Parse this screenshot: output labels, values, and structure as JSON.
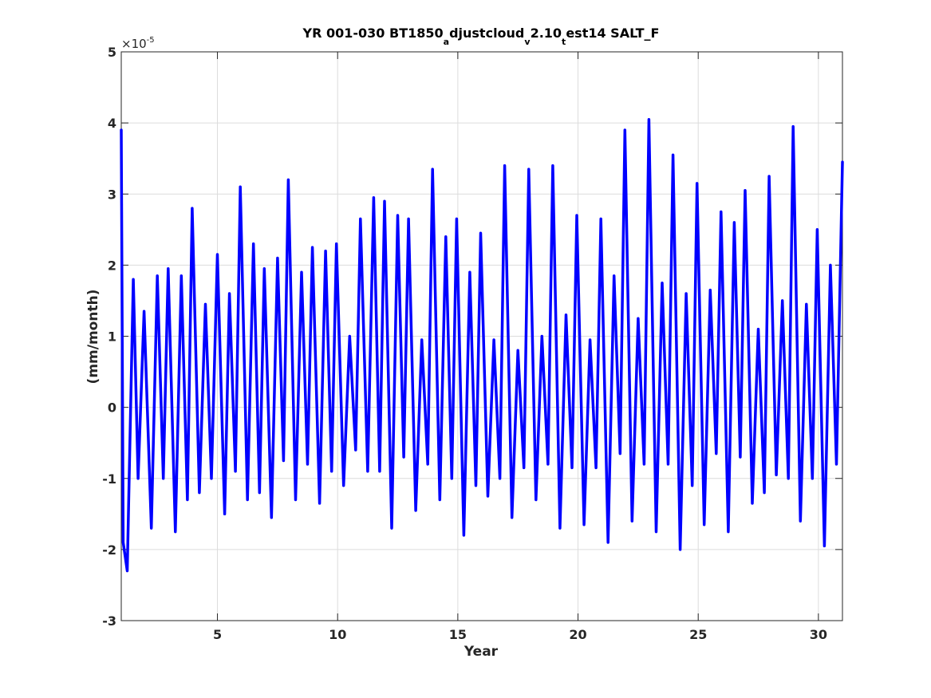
{
  "chart_data": {
    "type": "line",
    "title": {
      "main": "YR 001-030 BT1850",
      "sub1": "a",
      "part2": "djustcloud",
      "sub2": "v",
      "part3": "2.10",
      "sub3": "t",
      "part4": "est14 SALT_F"
    },
    "xlabel": "Year",
    "ylabel": "(mm/month)",
    "exponent_base": "×10",
    "exponent_power": "-5",
    "xlim": [
      1,
      31
    ],
    "ylim": [
      -3,
      5
    ],
    "xticks": [
      5,
      10,
      15,
      20,
      25,
      30
    ],
    "xtick_labels": [
      "5",
      "10",
      "15",
      "20",
      "25",
      "30"
    ],
    "yticks": [
      -3,
      -2,
      -1,
      0,
      1,
      2,
      3,
      4,
      5
    ],
    "ytick_labels": [
      "-3",
      "-2",
      "-1",
      "0",
      "1",
      "2",
      "3",
      "4",
      "5"
    ],
    "grid": true,
    "series": [
      {
        "color": "#0000ff",
        "points": [
          [
            1.0,
            3.9
          ],
          [
            1.08,
            -1.9
          ],
          [
            1.25,
            -2.3
          ],
          [
            1.5,
            1.8
          ],
          [
            1.7,
            -1.0
          ],
          [
            1.95,
            1.35
          ],
          [
            2.25,
            -1.7
          ],
          [
            2.5,
            1.85
          ],
          [
            2.75,
            -1.0
          ],
          [
            2.95,
            1.95
          ],
          [
            3.25,
            -1.75
          ],
          [
            3.5,
            1.85
          ],
          [
            3.75,
            -1.3
          ],
          [
            3.95,
            2.8
          ],
          [
            4.25,
            -1.2
          ],
          [
            4.5,
            1.45
          ],
          [
            4.75,
            -1.0
          ],
          [
            5.0,
            2.15
          ],
          [
            5.3,
            -1.5
          ],
          [
            5.5,
            1.6
          ],
          [
            5.75,
            -0.9
          ],
          [
            5.95,
            3.1
          ],
          [
            6.25,
            -1.3
          ],
          [
            6.5,
            2.3
          ],
          [
            6.75,
            -1.2
          ],
          [
            6.95,
            1.95
          ],
          [
            7.25,
            -1.55
          ],
          [
            7.5,
            2.1
          ],
          [
            7.75,
            -0.75
          ],
          [
            7.95,
            3.2
          ],
          [
            8.25,
            -1.3
          ],
          [
            8.5,
            1.9
          ],
          [
            8.75,
            -0.8
          ],
          [
            8.95,
            2.25
          ],
          [
            9.25,
            -1.35
          ],
          [
            9.5,
            2.2
          ],
          [
            9.75,
            -0.9
          ],
          [
            9.95,
            2.3
          ],
          [
            10.25,
            -1.1
          ],
          [
            10.5,
            1.0
          ],
          [
            10.75,
            -0.6
          ],
          [
            10.95,
            2.65
          ],
          [
            11.25,
            -0.9
          ],
          [
            11.5,
            2.95
          ],
          [
            11.75,
            -0.9
          ],
          [
            11.95,
            2.9
          ],
          [
            12.25,
            -1.7
          ],
          [
            12.5,
            2.7
          ],
          [
            12.75,
            -0.7
          ],
          [
            12.95,
            2.65
          ],
          [
            13.25,
            -1.45
          ],
          [
            13.5,
            0.95
          ],
          [
            13.75,
            -0.8
          ],
          [
            13.95,
            3.35
          ],
          [
            14.25,
            -1.3
          ],
          [
            14.5,
            2.4
          ],
          [
            14.75,
            -1.0
          ],
          [
            14.95,
            2.65
          ],
          [
            15.25,
            -1.8
          ],
          [
            15.5,
            1.9
          ],
          [
            15.75,
            -1.1
          ],
          [
            15.95,
            2.45
          ],
          [
            16.25,
            -1.25
          ],
          [
            16.5,
            0.95
          ],
          [
            16.75,
            -1.0
          ],
          [
            16.95,
            3.4
          ],
          [
            17.25,
            -1.55
          ],
          [
            17.5,
            0.8
          ],
          [
            17.75,
            -0.85
          ],
          [
            17.95,
            3.35
          ],
          [
            18.25,
            -1.3
          ],
          [
            18.5,
            1.0
          ],
          [
            18.75,
            -0.8
          ],
          [
            18.95,
            3.4
          ],
          [
            19.25,
            -1.7
          ],
          [
            19.5,
            1.3
          ],
          [
            19.75,
            -0.85
          ],
          [
            19.95,
            2.7
          ],
          [
            20.25,
            -1.65
          ],
          [
            20.5,
            0.95
          ],
          [
            20.75,
            -0.85
          ],
          [
            20.95,
            2.65
          ],
          [
            21.25,
            -1.9
          ],
          [
            21.5,
            1.85
          ],
          [
            21.75,
            -0.65
          ],
          [
            21.95,
            3.9
          ],
          [
            22.25,
            -1.6
          ],
          [
            22.5,
            1.25
          ],
          [
            22.75,
            -0.8
          ],
          [
            22.95,
            4.05
          ],
          [
            23.25,
            -1.75
          ],
          [
            23.5,
            1.75
          ],
          [
            23.75,
            -0.8
          ],
          [
            23.95,
            3.55
          ],
          [
            24.25,
            -2.0
          ],
          [
            24.5,
            1.6
          ],
          [
            24.75,
            -1.1
          ],
          [
            24.95,
            3.15
          ],
          [
            25.25,
            -1.65
          ],
          [
            25.5,
            1.65
          ],
          [
            25.75,
            -0.65
          ],
          [
            25.95,
            2.75
          ],
          [
            26.25,
            -1.75
          ],
          [
            26.5,
            2.6
          ],
          [
            26.75,
            -0.7
          ],
          [
            26.95,
            3.05
          ],
          [
            27.25,
            -1.35
          ],
          [
            27.5,
            1.1
          ],
          [
            27.75,
            -1.2
          ],
          [
            27.95,
            3.25
          ],
          [
            28.25,
            -0.95
          ],
          [
            28.5,
            1.5
          ],
          [
            28.75,
            -1.0
          ],
          [
            28.95,
            3.95
          ],
          [
            29.25,
            -1.6
          ],
          [
            29.5,
            1.45
          ],
          [
            29.75,
            -1.0
          ],
          [
            29.95,
            2.5
          ],
          [
            30.25,
            -1.95
          ],
          [
            30.5,
            2.0
          ],
          [
            30.75,
            -0.8
          ],
          [
            31.0,
            3.45
          ]
        ]
      }
    ]
  }
}
